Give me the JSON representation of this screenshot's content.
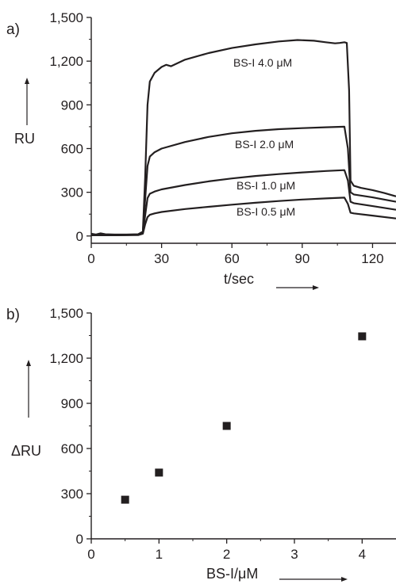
{
  "chart_data": [
    {
      "panel_label": "a)",
      "type": "line",
      "xlabel": "t/sec",
      "ylabel": "RU",
      "xlim": [
        0,
        130
      ],
      "ylim": [
        -50,
        1500
      ],
      "xticks": [
        0,
        30,
        60,
        90,
        120
      ],
      "xtick_labels": [
        "0",
        "30",
        "60",
        "90",
        "120"
      ],
      "yticks": [
        0,
        300,
        600,
        900,
        1200,
        1500
      ],
      "ytick_labels": [
        "0",
        "300",
        "600",
        "900",
        "1,200",
        "1,500"
      ],
      "grid": false,
      "series": [
        {
          "name": "BS-I 4.0 μM",
          "x": [
            0,
            2,
            4,
            6,
            10,
            15,
            20,
            22,
            23,
            24,
            25,
            27,
            30,
            32,
            34,
            40,
            50,
            60,
            70,
            80,
            88,
            95,
            100,
            104,
            106,
            108,
            109,
            110,
            110.6,
            112,
            115,
            120,
            125,
            130
          ],
          "y": [
            15,
            10,
            18,
            12,
            10,
            10,
            12,
            30,
            400,
            900,
            1060,
            1120,
            1160,
            1175,
            1165,
            1210,
            1255,
            1290,
            1315,
            1335,
            1345,
            1340,
            1330,
            1322,
            1325,
            1330,
            1325,
            1000,
            380,
            345,
            330,
            315,
            295,
            272
          ]
        },
        {
          "name": "BS-I 2.0 μM",
          "x": [
            0,
            10,
            20,
            22,
            23,
            24,
            25,
            27,
            30,
            40,
            50,
            60,
            70,
            80,
            90,
            100,
            108,
            109.5,
            110.6,
            112,
            120,
            130
          ],
          "y": [
            8,
            8,
            10,
            25,
            250,
            480,
            545,
            575,
            600,
            645,
            680,
            705,
            722,
            733,
            740,
            746,
            750,
            600,
            300,
            285,
            265,
            235
          ]
        },
        {
          "name": "BS-I 1.0 μM",
          "x": [
            0,
            10,
            20,
            22,
            23,
            24,
            25,
            27,
            30,
            40,
            50,
            60,
            70,
            80,
            90,
            100,
            108,
            109.5,
            110.6,
            112,
            120,
            130
          ],
          "y": [
            5,
            5,
            8,
            20,
            140,
            260,
            290,
            305,
            320,
            350,
            375,
            395,
            412,
            425,
            436,
            446,
            452,
            380,
            235,
            225,
            205,
            180
          ]
        },
        {
          "name": "BS-I 0.5 μM",
          "x": [
            0,
            10,
            20,
            22,
            23,
            24,
            25,
            27,
            30,
            40,
            50,
            60,
            70,
            80,
            90,
            100,
            108,
            109.5,
            110.6,
            112,
            120,
            130
          ],
          "y": [
            5,
            5,
            6,
            15,
            80,
            130,
            145,
            155,
            165,
            185,
            200,
            215,
            228,
            240,
            250,
            258,
            263,
            220,
            160,
            155,
            140,
            120
          ]
        }
      ],
      "annotations": [
        "BS-I 4.0 μM",
        "BS-I 2.0 μM",
        "BS-I 1.0 μM",
        "BS-I 0.5 μM"
      ]
    },
    {
      "panel_label": "b)",
      "type": "scatter",
      "xlabel": "BS-I/μM",
      "ylabel": "ΔRU",
      "xlim": [
        0,
        4.5
      ],
      "ylim": [
        0,
        1500
      ],
      "xticks": [
        0,
        1,
        2,
        3,
        4
      ],
      "xtick_labels": [
        "0",
        "1",
        "2",
        "3",
        "4"
      ],
      "yticks": [
        0,
        300,
        600,
        900,
        1200,
        1500
      ],
      "ytick_labels": [
        "0",
        "300",
        "600",
        "900",
        "1,200",
        "1,500"
      ],
      "grid": false,
      "marker": "filled-square",
      "series": [
        {
          "x": [
            0.5,
            1.0,
            2.0,
            4.0
          ],
          "y": [
            260,
            440,
            750,
            1345
          ]
        }
      ]
    }
  ]
}
